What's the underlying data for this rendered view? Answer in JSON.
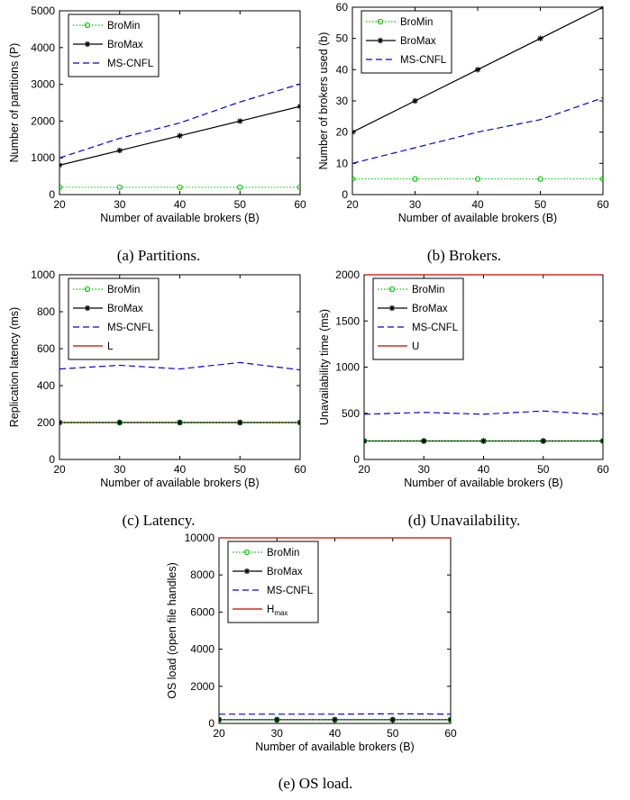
{
  "chart_data": [
    {
      "type": "line",
      "caption": "(a) Partitions.",
      "xlabel": "Number of available brokers (B)",
      "ylabel": "Number of partitions (P)",
      "xlim": [
        20,
        60
      ],
      "ylim": [
        0,
        5000
      ],
      "xticks": [
        20,
        30,
        40,
        50,
        60
      ],
      "yticks": [
        0,
        1000,
        2000,
        3000,
        4000,
        5000
      ],
      "x": [
        20,
        30,
        40,
        50,
        60
      ],
      "legend_position": "top-left",
      "series": [
        {
          "name": "BroMin",
          "values": [
            200,
            200,
            200,
            200,
            200
          ],
          "color": "#00cc00",
          "style": "dotted",
          "marker": "circle"
        },
        {
          "name": "BroMax",
          "values": [
            800,
            1200,
            1600,
            2000,
            2400
          ],
          "color": "#000000",
          "style": "solid",
          "marker": "star"
        },
        {
          "name": "MS-CNFL",
          "values": [
            1000,
            1530,
            1950,
            2520,
            3010
          ],
          "color": "#0000ee",
          "style": "dashed",
          "marker": "none"
        }
      ]
    },
    {
      "type": "line",
      "caption": "(b) Brokers.",
      "xlabel": "Number of available brokers (B)",
      "ylabel": "Number of brokers used (b)",
      "xlim": [
        20,
        60
      ],
      "ylim": [
        0,
        60
      ],
      "xticks": [
        20,
        30,
        40,
        50,
        60
      ],
      "yticks": [
        0,
        10,
        20,
        30,
        40,
        50,
        60
      ],
      "x": [
        20,
        30,
        40,
        50,
        60
      ],
      "legend_position": "top-left",
      "series": [
        {
          "name": "BroMin",
          "values": [
            5,
            5,
            5,
            5,
            5
          ],
          "color": "#00cc00",
          "style": "dotted",
          "marker": "circle"
        },
        {
          "name": "BroMax",
          "values": [
            20,
            30,
            40,
            50,
            60
          ],
          "color": "#000000",
          "style": "solid",
          "marker": "star"
        },
        {
          "name": "MS-CNFL",
          "values": [
            10,
            15,
            20,
            24,
            31
          ],
          "color": "#0000ee",
          "style": "dashed",
          "marker": "none"
        }
      ]
    },
    {
      "type": "line",
      "caption": "(c) Latency.",
      "xlabel": "Number of available brokers (B)",
      "ylabel": "Replication latency (ms)",
      "xlim": [
        20,
        60
      ],
      "ylim": [
        0,
        1000
      ],
      "xticks": [
        20,
        30,
        40,
        50,
        60
      ],
      "yticks": [
        0,
        200,
        400,
        600,
        800,
        1000
      ],
      "x": [
        20,
        30,
        40,
        50,
        60
      ],
      "legend_position": "top-left",
      "series": [
        {
          "name": "BroMin",
          "values": [
            200,
            200,
            200,
            200,
            200
          ],
          "color": "#00cc00",
          "style": "dotted",
          "marker": "circle"
        },
        {
          "name": "BroMax",
          "values": [
            200,
            200,
            200,
            200,
            200
          ],
          "color": "#000000",
          "style": "solid",
          "marker": "star"
        },
        {
          "name": "MS-CNFL",
          "values": [
            490,
            510,
            490,
            525,
            485
          ],
          "color": "#0000ee",
          "style": "dashed",
          "marker": "none"
        },
        {
          "name": "L",
          "values": [
            200,
            200,
            200,
            200,
            200
          ],
          "color": "#cc0000",
          "style": "solid",
          "marker": "none"
        }
      ]
    },
    {
      "type": "line",
      "caption": "(d) Unavailability.",
      "xlabel": "Number of available brokers (B)",
      "ylabel": "Unavailability time (ms)",
      "xlim": [
        20,
        60
      ],
      "ylim": [
        0,
        2000
      ],
      "xticks": [
        20,
        30,
        40,
        50,
        60
      ],
      "yticks": [
        0,
        500,
        1000,
        1500,
        2000
      ],
      "x": [
        20,
        30,
        40,
        50,
        60
      ],
      "legend_position": "top-left",
      "series": [
        {
          "name": "BroMin",
          "values": [
            200,
            200,
            200,
            200,
            200
          ],
          "color": "#00cc00",
          "style": "dotted",
          "marker": "circle"
        },
        {
          "name": "BroMax",
          "values": [
            200,
            200,
            200,
            200,
            200
          ],
          "color": "#000000",
          "style": "solid",
          "marker": "star"
        },
        {
          "name": "MS-CNFL",
          "values": [
            490,
            510,
            490,
            525,
            485
          ],
          "color": "#0000ee",
          "style": "dashed",
          "marker": "none"
        },
        {
          "name": "U",
          "values": [
            2000,
            2000,
            2000,
            2000,
            2000
          ],
          "color": "#cc0000",
          "style": "solid",
          "marker": "none"
        }
      ]
    },
    {
      "type": "line",
      "caption": "(e) OS load.",
      "xlabel": "Number of available brokers (B)",
      "ylabel": "OS load (open file handles)",
      "xlim": [
        20,
        60
      ],
      "ylim": [
        0,
        10000
      ],
      "xticks": [
        20,
        30,
        40,
        50,
        60
      ],
      "yticks": [
        0,
        2000,
        4000,
        6000,
        8000,
        10000
      ],
      "x": [
        20,
        30,
        40,
        50,
        60
      ],
      "legend_position": "top-left",
      "series": [
        {
          "name": "BroMin",
          "values": [
            200,
            200,
            200,
            200,
            200
          ],
          "color": "#00cc00",
          "style": "dotted",
          "marker": "circle"
        },
        {
          "name": "BroMax",
          "values": [
            200,
            200,
            200,
            200,
            200
          ],
          "color": "#000000",
          "style": "solid",
          "marker": "star"
        },
        {
          "name": "MS-CNFL",
          "values": [
            500,
            500,
            500,
            520,
            500
          ],
          "color": "#0000ee",
          "style": "dashed",
          "marker": "none"
        },
        {
          "name": "H",
          "name_subscript": "max",
          "values": [
            10000,
            10000,
            10000,
            10000,
            10000
          ],
          "color": "#cc0000",
          "style": "solid",
          "marker": "none"
        }
      ]
    }
  ]
}
